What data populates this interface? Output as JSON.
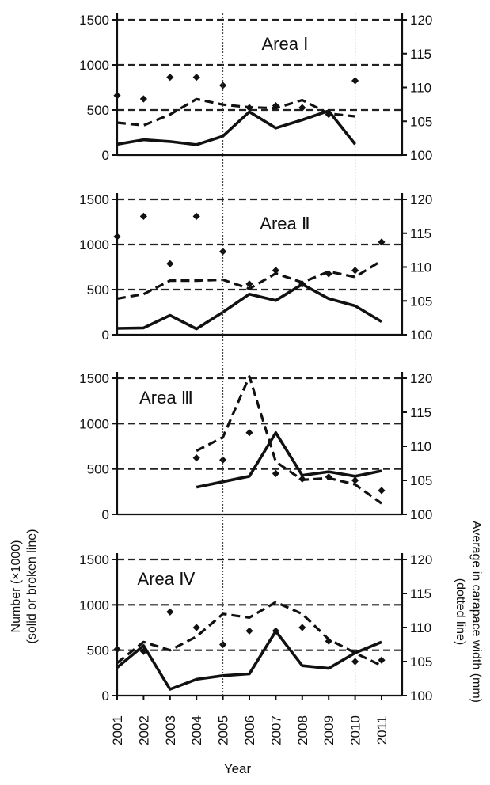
{
  "chart_data": {
    "type": "line",
    "x": [
      2001,
      2002,
      2003,
      2004,
      2005,
      2006,
      2007,
      2008,
      2009,
      2010,
      2011
    ],
    "x_tick_labels": [
      "2001",
      "2002",
      "2003",
      "2004",
      "2005",
      "2006",
      "2007",
      "2008",
      "2009",
      "2010",
      "2011"
    ],
    "xlabel": "Year",
    "ylabel_left": [
      "Number (×1000)",
      "(solid or broken line)"
    ],
    "ylabel_right": [
      "Average in carapace width (mm)",
      "(dotted line)"
    ],
    "ylim_left": [
      0,
      1500
    ],
    "yticks_left": [
      "0",
      "500",
      "1000",
      "1500"
    ],
    "ylim_right": [
      100,
      120
    ],
    "yticks_right": [
      "100",
      "105",
      "110",
      "115",
      "120"
    ],
    "reference_years": [
      2005,
      2010
    ],
    "colors": {
      "ink": "#111111",
      "grid": "#222222"
    },
    "panels": [
      {
        "label": "Area Ⅰ",
        "solid": [
          120,
          170,
          150,
          115,
          210,
          480,
          300,
          390,
          490,
          120,
          null
        ],
        "broken": [
          360,
          330,
          450,
          620,
          560,
          530,
          520,
          610,
          460,
          430,
          null
        ],
        "dotted": [
          108.8,
          108.3,
          111.5,
          111.5,
          110.3,
          107.0,
          107.3,
          107.0,
          106.0,
          111.0,
          null
        ]
      },
      {
        "label": "Area Ⅱ",
        "solid": [
          70,
          75,
          215,
          65,
          250,
          450,
          380,
          560,
          400,
          320,
          145
        ],
        "broken": [
          400,
          450,
          600,
          600,
          610,
          510,
          680,
          580,
          700,
          640,
          820
        ],
        "dotted": [
          114.5,
          117.5,
          110.5,
          117.5,
          112.3,
          107.5,
          109.5,
          107.5,
          109.0,
          109.5,
          113.7
        ]
      },
      {
        "label": "Area Ⅲ",
        "solid": [
          null,
          null,
          null,
          300,
          360,
          420,
          900,
          430,
          470,
          420,
          480
        ],
        "broken": [
          null,
          null,
          null,
          700,
          850,
          1520,
          580,
          380,
          400,
          330,
          120
        ],
        "dotted": [
          null,
          null,
          null,
          108.3,
          108.0,
          112.0,
          106.0,
          105.2,
          105.5,
          105.0,
          103.5
        ]
      },
      {
        "label": "Area Ⅳ",
        "solid": [
          310,
          550,
          70,
          180,
          220,
          240,
          710,
          330,
          300,
          470,
          590
        ],
        "broken": [
          360,
          590,
          500,
          650,
          900,
          860,
          1030,
          900,
          620,
          470,
          330
        ],
        "dotted": [
          106.8,
          106.5,
          112.3,
          110.0,
          107.5,
          109.5,
          109.5,
          110.0,
          108.0,
          105.0,
          105.2
        ]
      }
    ]
  }
}
